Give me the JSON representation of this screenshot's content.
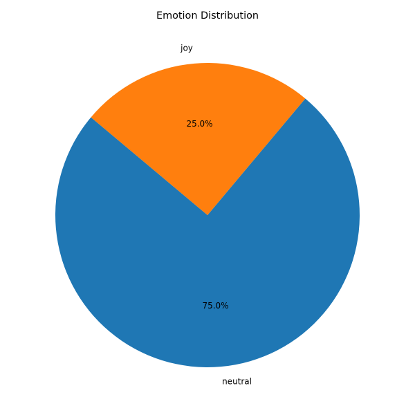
{
  "chart_data": {
    "type": "pie",
    "title": "Emotion Distribution",
    "labels": [
      "neutral",
      "joy"
    ],
    "values": [
      75.0,
      25.0
    ],
    "percent_labels": [
      "75.0%",
      "25.0%"
    ],
    "colors": [
      "#1f77b4",
      "#ff7f0e"
    ],
    "start_angle_deg": 140,
    "direction": "counterclockwise"
  }
}
